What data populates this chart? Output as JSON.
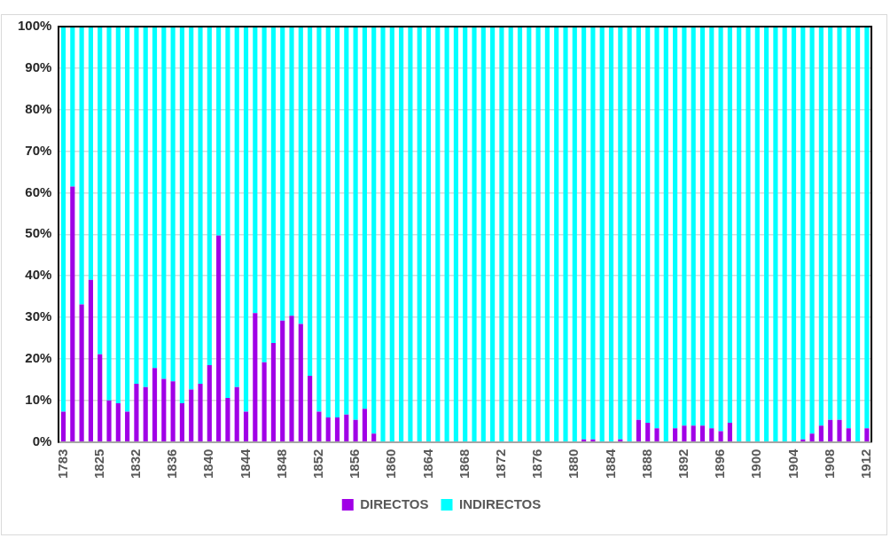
{
  "chart_data": {
    "type": "bar",
    "stacked": true,
    "grid": "y",
    "legend": "bottom",
    "categories": [
      "1783",
      null,
      null,
      null,
      "1825",
      null,
      null,
      null,
      "1832",
      null,
      null,
      null,
      "1836",
      null,
      null,
      null,
      "1840",
      null,
      null,
      null,
      "1844",
      null,
      null,
      null,
      "1848",
      null,
      null,
      null,
      "1852",
      null,
      null,
      null,
      "1856",
      null,
      null,
      null,
      "1860",
      null,
      null,
      null,
      "1864",
      null,
      null,
      null,
      "1868",
      null,
      null,
      null,
      "1872",
      null,
      null,
      null,
      "1876",
      null,
      null,
      null,
      "1880",
      null,
      null,
      null,
      "1884",
      null,
      null,
      null,
      "1888",
      null,
      null,
      null,
      "1892",
      null,
      null,
      null,
      "1896",
      null,
      null,
      null,
      "1900",
      null,
      null,
      null,
      "1904",
      null,
      null,
      null,
      "1908",
      null,
      null,
      null,
      "1912"
    ],
    "series": [
      {
        "name": "DIRECTOS",
        "color": "#a000e6",
        "values": [
          7.3,
          61.5,
          33.1,
          39.0,
          21.1,
          10.0,
          9.3,
          7.3,
          14.0,
          13.2,
          17.8,
          15.2,
          14.6,
          9.3,
          12.6,
          14.0,
          18.5,
          49.7,
          10.6,
          13.2,
          7.3,
          31.0,
          19.2,
          23.8,
          29.2,
          30.4,
          28.4,
          15.9,
          7.3,
          5.9,
          5.9,
          6.6,
          5.3,
          8.0,
          2.0,
          0,
          0,
          0,
          0,
          0,
          0,
          0,
          0,
          0,
          0,
          0,
          0,
          0,
          0,
          0,
          0,
          0,
          0,
          0,
          0,
          0,
          0,
          0.6,
          0.6,
          0,
          0,
          0.6,
          0,
          5.3,
          4.6,
          3.3,
          0,
          3.3,
          3.9,
          3.9,
          3.9,
          3.3,
          2.6,
          4.6,
          0,
          0,
          0,
          0,
          0,
          0,
          0,
          0.6,
          2.0,
          3.9,
          5.3,
          5.3,
          3.3,
          0,
          3.3
        ]
      },
      {
        "name": "INDIRECTOS",
        "color": "#00ffff",
        "values": [
          92.7,
          38.5,
          66.9,
          61.0,
          78.9,
          90.0,
          90.7,
          92.7,
          86.0,
          86.8,
          82.2,
          84.8,
          85.4,
          90.7,
          87.4,
          86.0,
          81.5,
          50.3,
          89.4,
          86.8,
          92.7,
          69.0,
          80.8,
          76.2,
          70.8,
          69.6,
          71.6,
          84.1,
          92.7,
          94.1,
          94.1,
          93.4,
          94.7,
          92.0,
          98.0,
          100,
          100,
          100,
          100,
          100,
          100,
          100,
          100,
          100,
          100,
          100,
          100,
          100,
          100,
          100,
          100,
          100,
          100,
          100,
          100,
          100,
          100,
          99.4,
          99.4,
          100,
          100,
          99.4,
          100,
          94.7,
          95.4,
          96.7,
          100,
          96.7,
          96.1,
          96.1,
          96.1,
          96.7,
          97.4,
          95.4,
          100,
          100,
          100,
          100,
          100,
          100,
          100,
          99.4,
          98.0,
          96.1,
          94.7,
          94.7,
          96.7,
          100,
          96.7
        ]
      }
    ],
    "ylim": [
      0,
      100
    ],
    "yticks": [
      {
        "value": 0,
        "label": "0%"
      },
      {
        "value": 10,
        "label": "10%"
      },
      {
        "value": 20,
        "label": "20%"
      },
      {
        "value": 30,
        "label": "30%"
      },
      {
        "value": 40,
        "label": "40%"
      },
      {
        "value": 50,
        "label": "50%"
      },
      {
        "value": 60,
        "label": "60%"
      },
      {
        "value": 70,
        "label": "70%"
      },
      {
        "value": 80,
        "label": "80%"
      },
      {
        "value": 90,
        "label": "90%"
      },
      {
        "value": 100,
        "label": "100%"
      }
    ]
  }
}
